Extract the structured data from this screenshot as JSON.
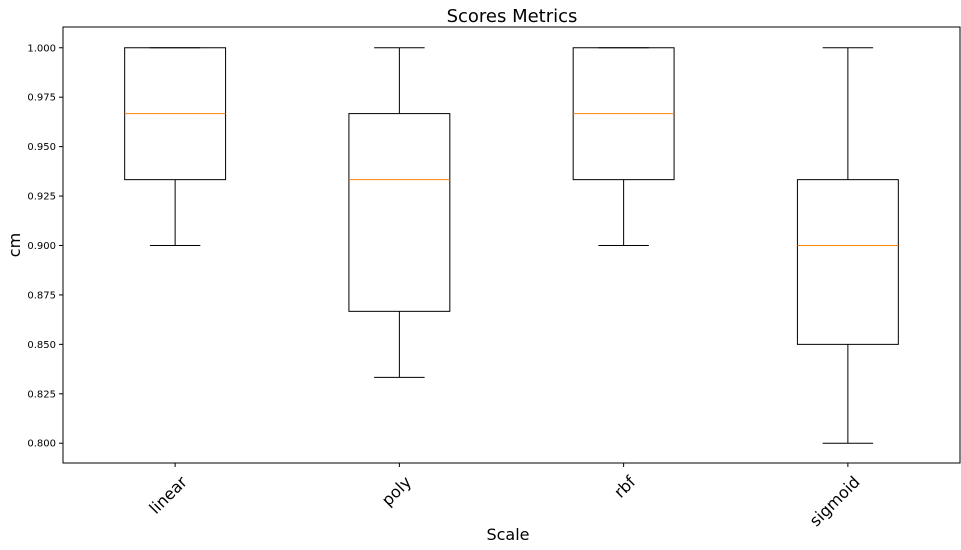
{
  "chart_data": {
    "type": "box",
    "title": "Scores Metrics",
    "xlabel": "Scale",
    "ylabel": "cm",
    "ylim": [
      0.79,
      1.0105
    ],
    "yticks": [
      "0.800",
      "0.825",
      "0.850",
      "0.875",
      "0.900",
      "0.925",
      "0.950",
      "0.975",
      "1.000"
    ],
    "categories": [
      "linear",
      "poly",
      "rbf",
      "sigmoid"
    ],
    "boxes": [
      {
        "category": "linear",
        "whisker_low": 0.9,
        "q1": 0.9333,
        "median": 0.9667,
        "q3": 1.0,
        "whisker_high": 1.0
      },
      {
        "category": "poly",
        "whisker_low": 0.8333,
        "q1": 0.8667,
        "median": 0.9333,
        "q3": 0.9667,
        "whisker_high": 1.0
      },
      {
        "category": "rbf",
        "whisker_low": 0.9,
        "q1": 0.9333,
        "median": 0.9667,
        "q3": 1.0,
        "whisker_high": 1.0
      },
      {
        "category": "sigmoid",
        "whisker_low": 0.8,
        "q1": 0.85,
        "median": 0.9,
        "q3": 0.9333,
        "whisker_high": 1.0
      }
    ],
    "grid": false,
    "x_tick_rotation": 45,
    "colors": {
      "box": "#000000",
      "median": "#ff7f0e",
      "background": "#ffffff"
    }
  }
}
